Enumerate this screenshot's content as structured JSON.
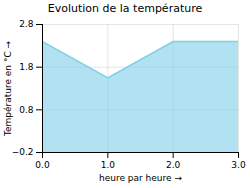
{
  "chart_data": {
    "type": "area",
    "title": "Evolution de la température",
    "x_label": "heure par heure",
    "y_label": "Température en °C",
    "x": [
      0,
      1,
      2,
      3
    ],
    "values": [
      2.4,
      1.55,
      2.4,
      2.4
    ],
    "xlim": [
      0,
      3
    ],
    "xticks": [
      0,
      1,
      2,
      3
    ],
    "ylim": [
      -0.2,
      2.8
    ],
    "yticks": [
      -0.2,
      0.8,
      1.8,
      2.8
    ],
    "color": "#7ecfe8",
    "grid": true
  }
}
